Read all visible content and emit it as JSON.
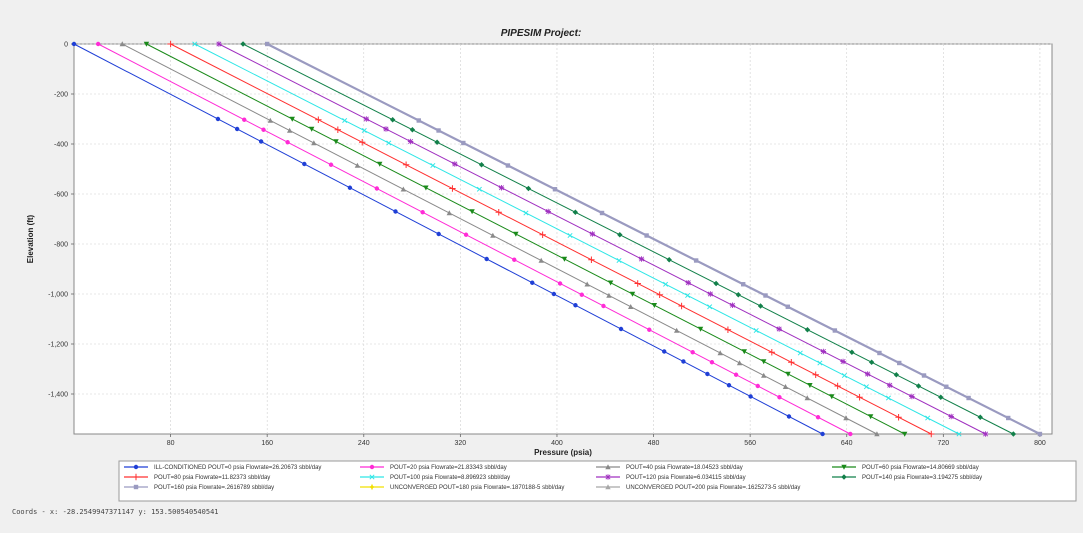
{
  "chart_data": {
    "type": "line",
    "title": "PIPESIM Project:",
    "xlabel": "Pressure (psia)",
    "ylabel": "Elevation (ft)",
    "xlim": [
      0,
      810
    ],
    "ylim": [
      -1560,
      0
    ],
    "x_ticks": [
      80,
      160,
      240,
      320,
      400,
      480,
      560,
      640,
      720,
      800
    ],
    "x_tick_labels": [
      "80",
      "160",
      "240",
      "320",
      "400",
      "480",
      "560",
      "640",
      "720",
      "800"
    ],
    "y_ticks": [
      0,
      -200,
      -400,
      -600,
      -800,
      -1000,
      -1200,
      -1400
    ],
    "y_tick_labels": [
      "0",
      "-200",
      "-400",
      "-600",
      "-800",
      "-1,000",
      "-1,200",
      "-1,400"
    ],
    "grid": true,
    "legend_position": "bottom",
    "series": [
      {
        "name": "ILL-CONDITIONED POUT=0 psia Flowrate=26.20673 sbbl/day",
        "color": "#1f3fd6",
        "marker": "circle",
        "x": [
          0,
          620
        ],
        "y": [
          0,
          -1560
        ]
      },
      {
        "name": "POUT=20 psia Flowrate=21.83343 sbbl/day",
        "color": "#ff2bd6",
        "marker": "circle",
        "x": [
          20,
          643
        ],
        "y": [
          0,
          -1560
        ]
      },
      {
        "name": "POUT=40 psia Flowrate=18.04523 sbbl/day",
        "color": "#8a8a8a",
        "marker": "triangle",
        "x": [
          40,
          665
        ],
        "y": [
          0,
          -1560
        ]
      },
      {
        "name": "POUT=60 psia Flowrate=14.80669 sbbl/day",
        "color": "#1a8a1a",
        "marker": "triangle-down",
        "x": [
          60,
          688
        ],
        "y": [
          0,
          -1560
        ]
      },
      {
        "name": "POUT=80 psia Flowrate=11.82373 sbbl/day",
        "color": "#ff3030",
        "marker": "plus",
        "x": [
          80,
          710
        ],
        "y": [
          0,
          -1560
        ]
      },
      {
        "name": "POUT=100 psia Flowrate=8.896923 sbbl/day",
        "color": "#2ee6e6",
        "marker": "cross",
        "x": [
          100,
          733
        ],
        "y": [
          0,
          -1560
        ]
      },
      {
        "name": "POUT=120 psia Flowrate=6.034115 sbbl/day",
        "color": "#a030c0",
        "marker": "asterisk",
        "x": [
          120,
          755
        ],
        "y": [
          0,
          -1560
        ]
      },
      {
        "name": "POUT=140 psia Flowrate=3.194275 sbbl/day",
        "color": "#12804a",
        "marker": "diamond",
        "x": [
          140,
          778
        ],
        "y": [
          0,
          -1560
        ]
      },
      {
        "name": "POUT=160 psia Flowrate=.2616789 sbbl/day",
        "color": "#9a9ac0",
        "marker": "square",
        "x": [
          160,
          800
        ],
        "y": [
          0,
          -1560
        ]
      },
      {
        "name": "UNCONVERGED POUT=180 psia Flowrate=.1870188-5 sbbl/day",
        "color": "#f2e000",
        "marker": "star",
        "x": [],
        "y": []
      },
      {
        "name": "UNCONVERGED POUT=200 psia Flowrate=.1625273-5 sbbl/day",
        "color": "#a8a8a8",
        "marker": "triangle",
        "x": [],
        "y": []
      }
    ]
  },
  "status": {
    "coords_text": "Coords -  x: -28.2549947371147  y: 153.500540540541"
  }
}
